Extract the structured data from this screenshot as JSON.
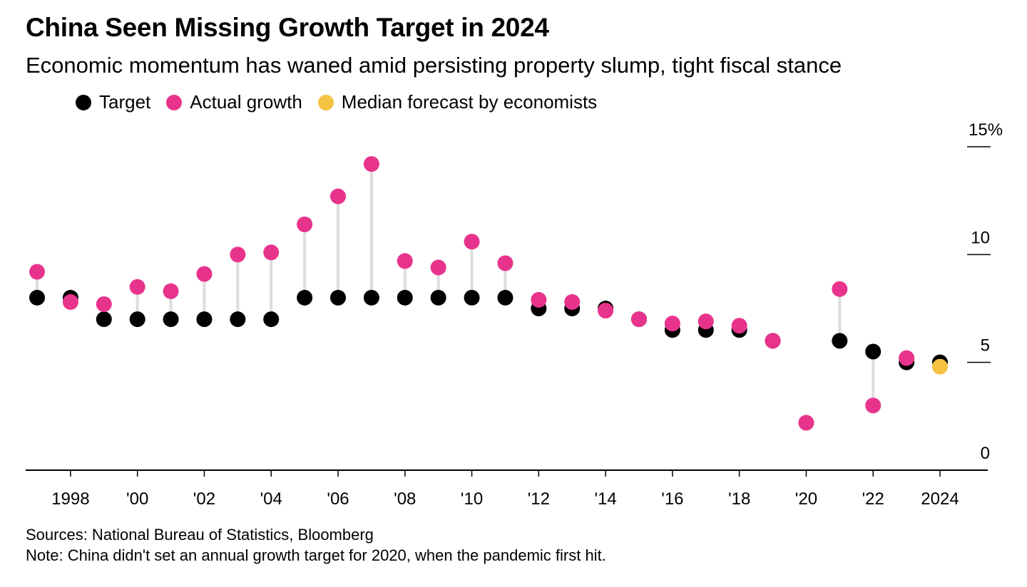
{
  "title": "China Seen Missing Growth Target in 2024",
  "subtitle": "Economic momentum has waned amid persisting property slump, tight fiscal stance",
  "legend": [
    {
      "label": "Target",
      "color": "#000000"
    },
    {
      "label": "Actual growth",
      "color": "#e8338c"
    },
    {
      "label": "Median forecast by economists",
      "color": "#f5c242"
    }
  ],
  "footer": {
    "sources": "Sources: National Bureau of Statistics, Bloomberg",
    "note": "Note: China didn't set an annual growth target for 2020, when the pandemic first hit."
  },
  "chart_data": {
    "type": "scatter",
    "x_tick_labels": [
      "1998",
      "'00",
      "'02",
      "'04",
      "'06",
      "'08",
      "'10",
      "'12",
      "'14",
      "'16",
      "'18",
      "'20",
      "'22",
      "2024"
    ],
    "x_tick_years": [
      1998,
      2000,
      2002,
      2004,
      2006,
      2008,
      2010,
      2012,
      2014,
      2016,
      2018,
      2020,
      2022,
      2024
    ],
    "y_tick_labels": [
      "0",
      "5",
      "10",
      "15%"
    ],
    "y_ticks": [
      0,
      5,
      10,
      15
    ],
    "ylim": [
      0,
      15
    ],
    "xlim": [
      1997,
      2025
    ],
    "grid": false,
    "colors": {
      "target": "#000000",
      "actual": "#e8338c",
      "forecast": "#f5c242",
      "connector": "#dddddd",
      "axis": "#000000"
    },
    "series": [
      {
        "name": "Target",
        "key": "target",
        "points": [
          {
            "x": 1997,
            "y": 8.0
          },
          {
            "x": 1998,
            "y": 8.0
          },
          {
            "x": 1999,
            "y": 7.0
          },
          {
            "x": 2000,
            "y": 7.0
          },
          {
            "x": 2001,
            "y": 7.0
          },
          {
            "x": 2002,
            "y": 7.0
          },
          {
            "x": 2003,
            "y": 7.0
          },
          {
            "x": 2004,
            "y": 7.0
          },
          {
            "x": 2005,
            "y": 8.0
          },
          {
            "x": 2006,
            "y": 8.0
          },
          {
            "x": 2007,
            "y": 8.0
          },
          {
            "x": 2008,
            "y": 8.0
          },
          {
            "x": 2009,
            "y": 8.0
          },
          {
            "x": 2010,
            "y": 8.0
          },
          {
            "x": 2011,
            "y": 8.0
          },
          {
            "x": 2012,
            "y": 7.5
          },
          {
            "x": 2013,
            "y": 7.5
          },
          {
            "x": 2014,
            "y": 7.5
          },
          {
            "x": 2015,
            "y": 7.0
          },
          {
            "x": 2016,
            "y": 6.5
          },
          {
            "x": 2017,
            "y": 6.5
          },
          {
            "x": 2018,
            "y": 6.5
          },
          {
            "x": 2019,
            "y": 6.0
          },
          {
            "x": 2021,
            "y": 6.0
          },
          {
            "x": 2022,
            "y": 5.5
          },
          {
            "x": 2023,
            "y": 5.0
          },
          {
            "x": 2024,
            "y": 5.0
          }
        ]
      },
      {
        "name": "Actual growth",
        "key": "actual",
        "points": [
          {
            "x": 1997,
            "y": 9.2
          },
          {
            "x": 1998,
            "y": 7.8
          },
          {
            "x": 1999,
            "y": 7.7
          },
          {
            "x": 2000,
            "y": 8.5
          },
          {
            "x": 2001,
            "y": 8.3
          },
          {
            "x": 2002,
            "y": 9.1
          },
          {
            "x": 2003,
            "y": 10.0
          },
          {
            "x": 2004,
            "y": 10.1
          },
          {
            "x": 2005,
            "y": 11.4
          },
          {
            "x": 2006,
            "y": 12.7
          },
          {
            "x": 2007,
            "y": 14.2
          },
          {
            "x": 2008,
            "y": 9.7
          },
          {
            "x": 2009,
            "y": 9.4
          },
          {
            "x": 2010,
            "y": 10.6
          },
          {
            "x": 2011,
            "y": 9.6
          },
          {
            "x": 2012,
            "y": 7.9
          },
          {
            "x": 2013,
            "y": 7.8
          },
          {
            "x": 2014,
            "y": 7.4
          },
          {
            "x": 2015,
            "y": 7.0
          },
          {
            "x": 2016,
            "y": 6.8
          },
          {
            "x": 2017,
            "y": 6.9
          },
          {
            "x": 2018,
            "y": 6.7
          },
          {
            "x": 2019,
            "y": 6.0
          },
          {
            "x": 2020,
            "y": 2.2
          },
          {
            "x": 2021,
            "y": 8.4
          },
          {
            "x": 2022,
            "y": 3.0
          },
          {
            "x": 2023,
            "y": 5.2
          }
        ]
      },
      {
        "name": "Median forecast by economists",
        "key": "forecast",
        "points": [
          {
            "x": 2024,
            "y": 4.8
          }
        ]
      }
    ]
  }
}
